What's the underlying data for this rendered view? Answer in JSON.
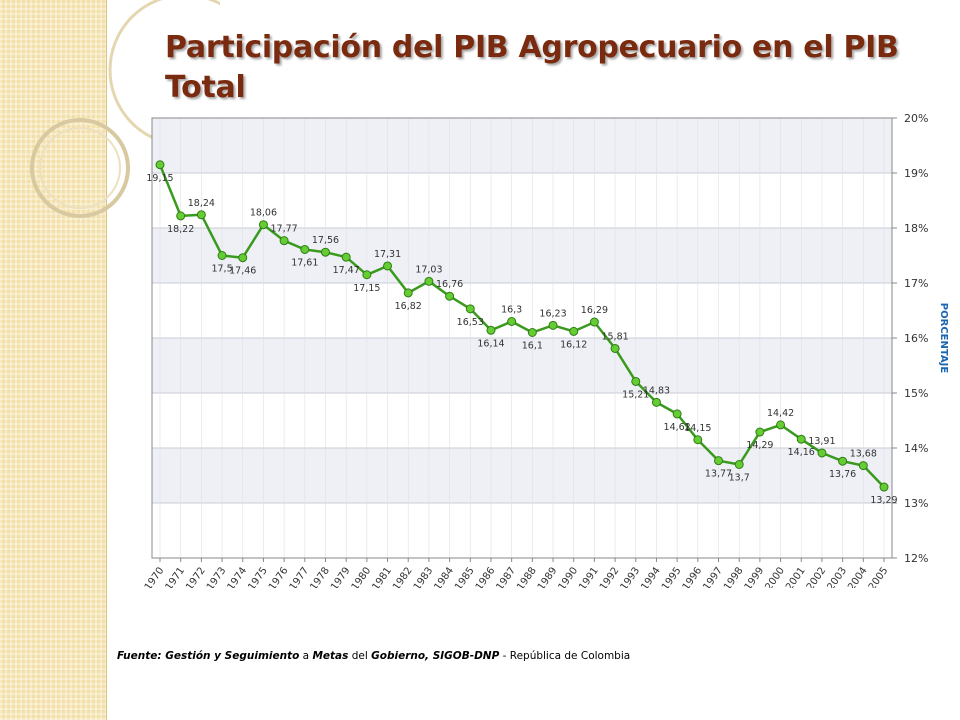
{
  "slide": {
    "title": "Participación del PIB Agropecuario en el PIB Total",
    "source": {
      "parts": [
        {
          "text": "Fuente: Gestión y Seguimiento",
          "style": "b"
        },
        {
          "text": " a ",
          "style": "n"
        },
        {
          "text": "Metas",
          "style": "b"
        },
        {
          "text": " del ",
          "style": "n"
        },
        {
          "text": "Gobierno, SIGOB-DNP",
          "style": "b"
        },
        {
          "text": " - República de Colombia",
          "style": "n"
        }
      ]
    },
    "colors": {
      "title": "#7a2a0e",
      "line": "#3a9a1e",
      "point": "#66cc33",
      "band": "#f3dfa8"
    }
  },
  "chart_data": {
    "type": "line",
    "categories": [
      "1970",
      "1971",
      "1972",
      "1973",
      "1974",
      "1975",
      "1976",
      "1977",
      "1978",
      "1979",
      "1980",
      "1981",
      "1982",
      "1983",
      "1984",
      "1985",
      "1986",
      "1987",
      "1988",
      "1989",
      "1990",
      "1991",
      "1992",
      "1993",
      "1994",
      "1995",
      "1996",
      "1997",
      "1998",
      "1999",
      "2000",
      "2001",
      "2002",
      "2003",
      "2004",
      "2005"
    ],
    "series": [
      {
        "values": [
          19.15,
          18.22,
          18.24,
          17.5,
          17.46,
          18.06,
          17.77,
          17.61,
          17.56,
          17.47,
          17.15,
          17.31,
          16.82,
          17.03,
          16.76,
          16.53,
          16.14,
          16.3,
          16.1,
          16.23,
          16.12,
          16.29,
          15.81,
          15.21,
          14.83,
          14.62,
          14.15,
          13.77,
          13.7,
          14.29,
          14.42,
          14.16,
          13.91,
          13.76,
          13.68,
          13.29
        ]
      }
    ],
    "data_labels": [
      "19,15",
      "18,22",
      "18,24",
      "17,5",
      "17,46",
      "18,06",
      "17,77",
      "17,61",
      "17,56",
      "17,47",
      "17,15",
      "17,31",
      "16,82",
      "17,03",
      "16,76",
      "16,53",
      "16,14",
      "16,3",
      "16,1",
      "16,23",
      "16,12",
      "16,29",
      "15,81",
      "15,21",
      "14,83",
      "14,62",
      "14,15",
      "13,77",
      "13,7",
      "14,29",
      "14,42",
      "14,16",
      "13,91",
      "13,76",
      "13,68",
      "13,29"
    ],
    "ylabel": "PORCENTAJE",
    "ylim": [
      12,
      20
    ],
    "yticks": [
      12,
      13,
      14,
      15,
      16,
      17,
      18,
      19,
      20
    ],
    "ytick_labels": [
      "12%",
      "13%",
      "14%",
      "15%",
      "16%",
      "17%",
      "18%",
      "19%",
      "20%"
    ],
    "y_axis_side": "right",
    "grid": true,
    "alternating_bands": true
  }
}
